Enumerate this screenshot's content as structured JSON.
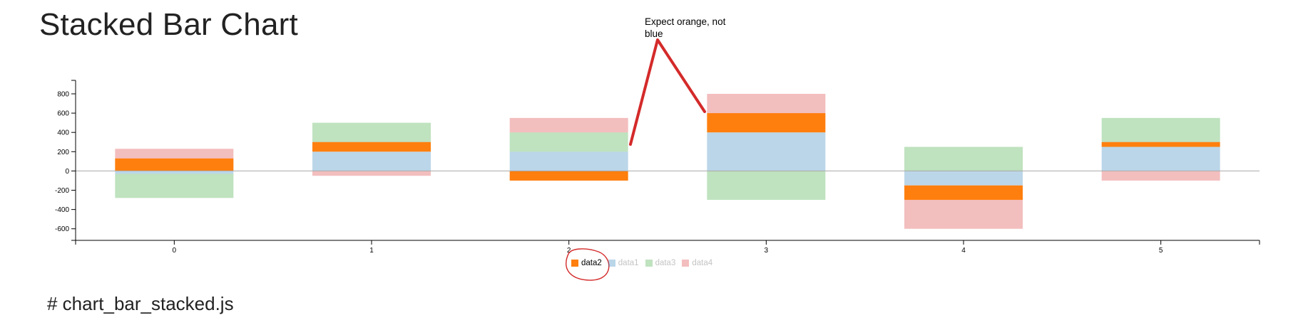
{
  "page": {
    "title": "Stacked Bar Chart",
    "footer": "# chart_bar_stacked.js"
  },
  "annotation": {
    "text": "Expect orange, not blue",
    "color": "#d42a2a"
  },
  "legend": {
    "items": [
      {
        "label": "data2",
        "color": "#ff7f0e",
        "state": "active"
      },
      {
        "label": "data1",
        "color": "#1f77b4",
        "state": "inactive"
      },
      {
        "label": "data3",
        "color": "#2ca02c",
        "state": "inactive"
      },
      {
        "label": "data4",
        "color": "#d62728",
        "state": "inactive"
      }
    ]
  },
  "chart_data": {
    "type": "bar",
    "stacked": true,
    "categories": [
      "0",
      "1",
      "2",
      "3",
      "4",
      "5"
    ],
    "ylim": [
      -720,
      940
    ],
    "yticks": [
      -600,
      -400,
      -200,
      0,
      200,
      400,
      600,
      800
    ],
    "grid": false,
    "zero_line": true,
    "legend_position": "bottom-center",
    "series": [
      {
        "name": "data1",
        "color": "#1f77b4",
        "values": [
          -30,
          200,
          200,
          400,
          -150,
          250
        ]
      },
      {
        "name": "data2",
        "color": "#ff7f0e",
        "values": [
          130,
          100,
          -100,
          200,
          -150,
          50
        ]
      },
      {
        "name": "data3",
        "color": "#2ca02c",
        "values": [
          -250,
          200,
          200,
          -300,
          250,
          250
        ]
      },
      {
        "name": "data4",
        "color": "#d62728",
        "values": [
          100,
          -50,
          150,
          200,
          -300,
          -100
        ]
      }
    ],
    "display": {
      "active_series": "data2",
      "active_opacity": 1,
      "inactive_opacity": 0.3
    }
  }
}
